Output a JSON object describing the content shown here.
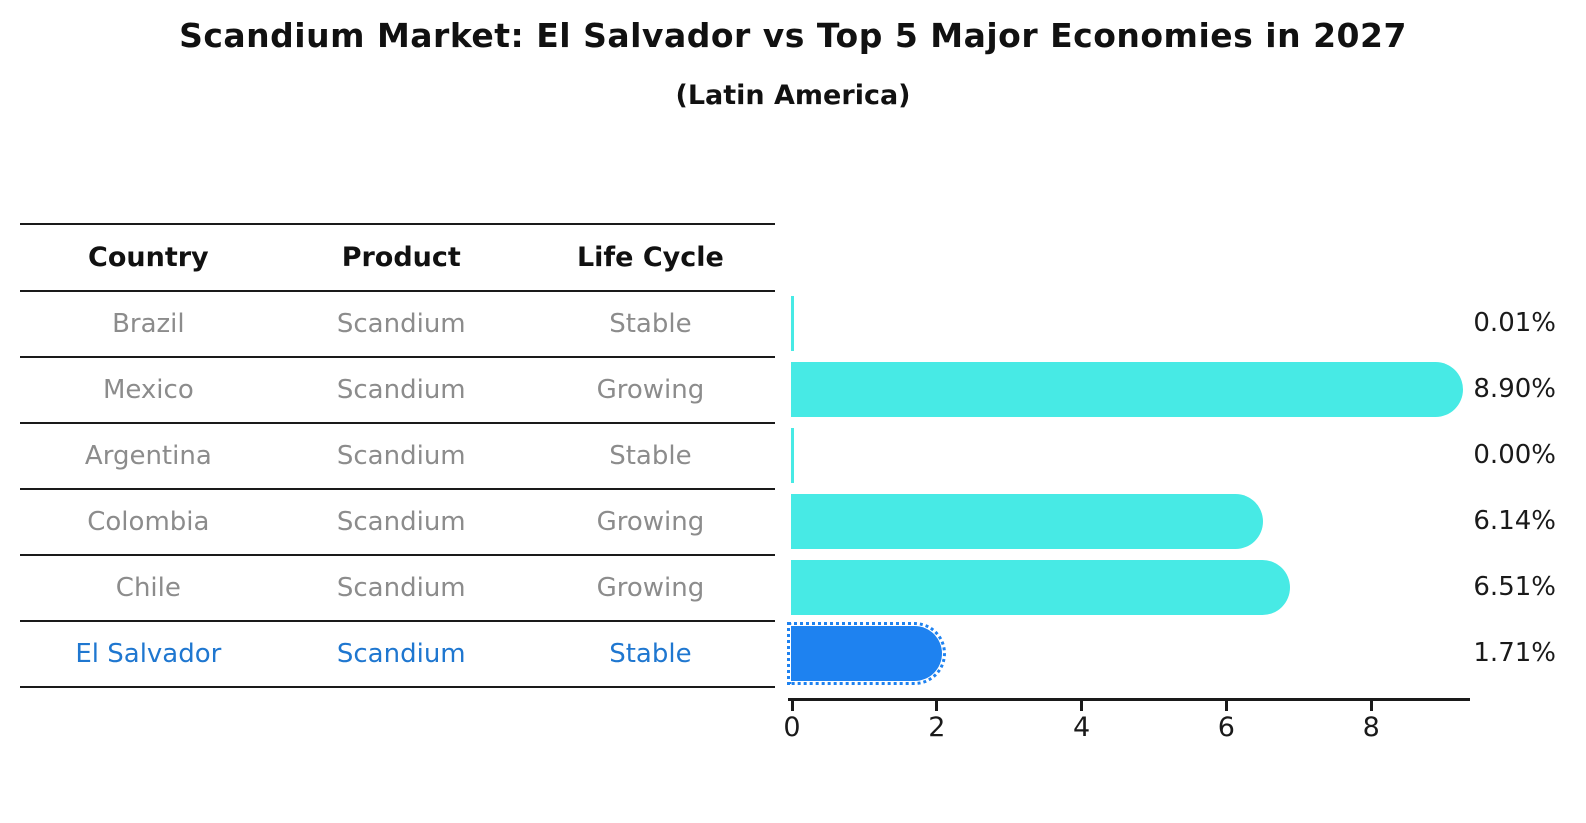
{
  "title": "Scandium Market: El Salvador vs Top 5 Major Economies in 2027",
  "subtitle": "(Latin America)",
  "table": {
    "headers": [
      "Country",
      "Product",
      "Life Cycle"
    ],
    "rows": [
      {
        "country": "Brazil",
        "product": "Scandium",
        "life_cycle": "Stable",
        "highlight": false
      },
      {
        "country": "Mexico",
        "product": "Scandium",
        "life_cycle": "Growing",
        "highlight": false
      },
      {
        "country": "Argentina",
        "product": "Scandium",
        "life_cycle": "Stable",
        "highlight": false
      },
      {
        "country": "Colombia",
        "product": "Scandium",
        "life_cycle": "Growing",
        "highlight": false
      },
      {
        "country": "Chile",
        "product": "Scandium",
        "life_cycle": "Growing",
        "highlight": false
      },
      {
        "country": "El Salvador",
        "product": "Scandium",
        "life_cycle": "Stable",
        "highlight": true
      }
    ]
  },
  "chart_data": {
    "type": "bar",
    "orientation": "horizontal",
    "title": "Scandium Market: El Salvador vs Top 5 Major Economies in 2027",
    "subtitle": "(Latin America)",
    "categories": [
      "Brazil",
      "Mexico",
      "Argentina",
      "Colombia",
      "Chile",
      "El Salvador"
    ],
    "values": [
      0.01,
      8.9,
      0.0,
      6.14,
      6.51,
      1.71
    ],
    "value_labels": [
      "0.01%",
      "8.90%",
      "0.00%",
      "6.14%",
      "6.51%",
      "1.71%"
    ],
    "x_ticks": [
      0,
      2,
      4,
      6,
      8
    ],
    "xlim": [
      0,
      9.37
    ],
    "grid": false,
    "legend": false,
    "bar_color": "#47eae5",
    "highlight_bar_color": "#1e82f0",
    "highlight_index": 5,
    "highlight_text_color": "#1f77d0",
    "row_text_color": "#8c8c8c"
  }
}
